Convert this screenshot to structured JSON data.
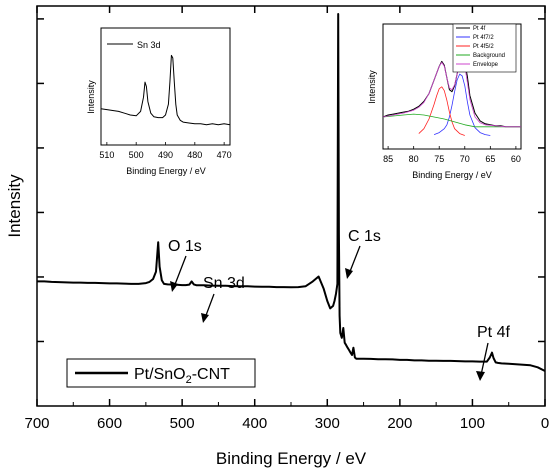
{
  "chart_data": [
    {
      "type": "line",
      "title": "",
      "xlabel": "Binding Energy / eV",
      "ylabel": "Intensity",
      "xlim": [
        700,
        0
      ],
      "x_ticks": [
        "700",
        "600",
        "500",
        "400",
        "300",
        "200",
        "100",
        "0"
      ],
      "y_ticks_labeled": false,
      "grid": false,
      "legend": {
        "position": "bottom-left",
        "label_main": "Pt/SnO",
        "label_sub": "2",
        "label_tail": "-CNT"
      },
      "series": [
        {
          "name": "Pt/SnO2-CNT",
          "color": "#000000",
          "x": [
            700,
            690,
            680,
            670,
            660,
            650,
            640,
            630,
            620,
            610,
            600,
            590,
            580,
            570,
            560,
            550,
            545,
            540,
            536,
            533,
            531,
            528,
            525,
            520,
            510,
            500,
            495,
            490,
            487,
            484,
            480,
            470,
            460,
            450,
            440,
            430,
            420,
            410,
            400,
            390,
            380,
            370,
            360,
            350,
            340,
            330,
            320,
            312,
            305,
            300,
            296,
            292,
            290,
            288,
            286,
            285,
            284,
            283,
            282,
            280,
            278,
            276,
            274,
            272,
            270,
            268,
            266,
            264,
            262,
            260,
            250,
            240,
            230,
            220,
            210,
            200,
            190,
            180,
            170,
            160,
            150,
            140,
            130,
            120,
            110,
            100,
            90,
            80,
            76,
            73,
            71,
            68,
            65,
            60,
            50,
            40,
            30,
            20,
            10,
            0
          ],
          "y": [
            0.41,
            0.41,
            0.408,
            0.407,
            0.406,
            0.405,
            0.405,
            0.404,
            0.404,
            0.403,
            0.402,
            0.402,
            0.401,
            0.4,
            0.4,
            0.403,
            0.408,
            0.42,
            0.45,
            0.57,
            0.47,
            0.415,
            0.4,
            0.398,
            0.397,
            0.395,
            0.395,
            0.397,
            0.41,
            0.398,
            0.394,
            0.394,
            0.393,
            0.392,
            0.392,
            0.391,
            0.39,
            0.39,
            0.389,
            0.388,
            0.388,
            0.387,
            0.387,
            0.386,
            0.387,
            0.39,
            0.41,
            0.43,
            0.38,
            0.33,
            0.3,
            0.31,
            0.33,
            0.36,
            0.4,
            1.5,
            0.6,
            0.27,
            0.2,
            0.18,
            0.22,
            0.16,
            0.15,
            0.14,
            0.13,
            0.12,
            0.11,
            0.14,
            0.1,
            0.095,
            0.095,
            0.094,
            0.093,
            0.093,
            0.092,
            0.09,
            0.09,
            0.088,
            0.088,
            0.087,
            0.087,
            0.086,
            0.086,
            0.085,
            0.084,
            0.084,
            0.083,
            0.083,
            0.1,
            0.12,
            0.098,
            0.08,
            0.078,
            0.076,
            0.074,
            0.072,
            0.07,
            0.068,
            0.06,
            0.045
          ]
        }
      ],
      "annotations": [
        {
          "text": "O 1s",
          "target_x": 533
        },
        {
          "text": "Sn 3d",
          "target_x": 487
        },
        {
          "text": "C 1s",
          "target_x": 285
        },
        {
          "text": "Pt 4f",
          "target_x": 73
        }
      ]
    },
    {
      "type": "line",
      "title": "",
      "xlabel": "Binding Energy / eV",
      "ylabel": "Intensity",
      "xlim": [
        512,
        468
      ],
      "x_ticks": [
        "510",
        "500",
        "490",
        "480",
        "470"
      ],
      "legend": {
        "position": "top-left"
      },
      "series": [
        {
          "name": "Sn 3d",
          "color": "#000000",
          "x": [
            512,
            510,
            508,
            506,
            504,
            502,
            500,
            498.5,
            497.5,
            497,
            496.5,
            496,
            495,
            494,
            492.5,
            491,
            490,
            489,
            488.5,
            488,
            487.5,
            487,
            486.5,
            486,
            485,
            484,
            482,
            480,
            478,
            476,
            474,
            472,
            470,
            468
          ],
          "y": [
            0.25,
            0.24,
            0.23,
            0.22,
            0.2,
            0.18,
            0.17,
            0.22,
            0.38,
            0.55,
            0.5,
            0.33,
            0.2,
            0.16,
            0.15,
            0.15,
            0.18,
            0.3,
            0.55,
            0.85,
            0.82,
            0.55,
            0.3,
            0.18,
            0.12,
            0.1,
            0.09,
            0.08,
            0.08,
            0.07,
            0.08,
            0.07,
            0.08,
            0.07
          ]
        }
      ]
    },
    {
      "type": "line",
      "title": "",
      "xlabel": "Binding Energy / eV",
      "ylabel": "Intensity",
      "xlim": [
        86,
        59
      ],
      "x_ticks": [
        "85",
        "80",
        "75",
        "70",
        "65",
        "60"
      ],
      "legend": {
        "position": "top-right"
      },
      "series": [
        {
          "name": "Pt 4f",
          "color": "#000000",
          "x": [
            86,
            85,
            84,
            83,
            82,
            81,
            80,
            79,
            78,
            77,
            76,
            75,
            74.5,
            74,
            73.5,
            73,
            72.5,
            72,
            71.5,
            71,
            70.5,
            70,
            69.5,
            69,
            68,
            67,
            66,
            65,
            64,
            63,
            62,
            61,
            60,
            59
          ],
          "y": [
            0.2,
            0.22,
            0.23,
            0.24,
            0.25,
            0.26,
            0.28,
            0.31,
            0.36,
            0.44,
            0.58,
            0.72,
            0.77,
            0.73,
            0.6,
            0.48,
            0.46,
            0.52,
            0.64,
            0.76,
            0.79,
            0.76,
            0.62,
            0.42,
            0.24,
            0.16,
            0.13,
            0.12,
            0.11,
            0.11,
            0.1,
            0.1,
            0.1,
            0.1
          ]
        },
        {
          "name": "Pt 4f7/2",
          "color": "#3333ff",
          "x": [
            76,
            75,
            74,
            73.5,
            73,
            72.5,
            72,
            71.5,
            71,
            70.5,
            70,
            69.5,
            69,
            68,
            67,
            66,
            65
          ],
          "y": [
            0.02,
            0.04,
            0.08,
            0.12,
            0.2,
            0.32,
            0.46,
            0.58,
            0.64,
            0.62,
            0.52,
            0.36,
            0.22,
            0.09,
            0.04,
            0.02,
            0.01
          ]
        },
        {
          "name": "Pt 4f5/2",
          "color": "#ff2222",
          "x": [
            79,
            78,
            77,
            76,
            75.5,
            75,
            74.5,
            74,
            73.5,
            73,
            72.5,
            72,
            71,
            70
          ],
          "y": [
            0.03,
            0.08,
            0.18,
            0.33,
            0.42,
            0.49,
            0.51,
            0.47,
            0.37,
            0.25,
            0.15,
            0.08,
            0.03,
            0.01
          ]
        },
        {
          "name": "Background",
          "color": "#22aa22",
          "x": [
            86,
            84,
            82,
            80,
            78,
            76,
            74,
            72,
            70,
            68,
            66,
            64,
            62,
            60,
            59
          ],
          "y": [
            0.2,
            0.21,
            0.22,
            0.23,
            0.22,
            0.2,
            0.18,
            0.15,
            0.12,
            0.1,
            0.1,
            0.1,
            0.1,
            0.1,
            0.1
          ]
        },
        {
          "name": "Envelope",
          "color": "#cc44cc",
          "x": [
            86,
            84,
            82,
            80,
            79,
            78,
            77,
            76,
            75,
            74.5,
            74,
            73.5,
            73,
            72.5,
            72,
            71.5,
            71,
            70.5,
            70,
            69.5,
            69,
            68,
            67,
            66,
            64,
            62,
            60,
            59
          ],
          "y": [
            0.2,
            0.22,
            0.24,
            0.27,
            0.3,
            0.35,
            0.44,
            0.58,
            0.72,
            0.76,
            0.72,
            0.6,
            0.5,
            0.48,
            0.53,
            0.64,
            0.75,
            0.78,
            0.72,
            0.56,
            0.38,
            0.2,
            0.14,
            0.12,
            0.11,
            0.1,
            0.1,
            0.1
          ]
        }
      ]
    }
  ]
}
